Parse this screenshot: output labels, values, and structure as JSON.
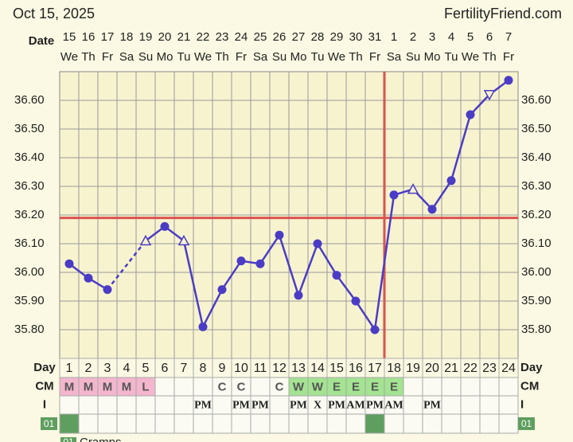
{
  "header": {
    "date": "Oct 15, 2025",
    "site": "FertilityFriend.com"
  },
  "chart_data": {
    "type": "line",
    "date_label": "Date",
    "categories": [
      "15",
      "16",
      "17",
      "18",
      "19",
      "20",
      "21",
      "22",
      "23",
      "24",
      "25",
      "26",
      "27",
      "28",
      "29",
      "30",
      "31",
      "1",
      "2",
      "3",
      "4",
      "5",
      "6",
      "7"
    ],
    "weekdays": [
      "We",
      "Th",
      "Fr",
      "Sa",
      "Su",
      "Mo",
      "Tu",
      "We",
      "Th",
      "Fr",
      "Sa",
      "Su",
      "Mo",
      "Tu",
      "We",
      "Th",
      "Fr",
      "Sa",
      "Su",
      "Mo",
      "Tu",
      "We",
      "Th",
      "Fr"
    ],
    "values": [
      36.03,
      35.98,
      35.94,
      null,
      36.11,
      36.16,
      36.11,
      35.81,
      35.94,
      36.04,
      36.03,
      36.13,
      35.92,
      36.1,
      35.99,
      35.9,
      35.8,
      36.27,
      36.29,
      36.22,
      36.32,
      36.55,
      36.62,
      36.67
    ],
    "markers": [
      "circle",
      "circle",
      "circle",
      null,
      "triangle-up",
      "circle",
      "triangle-up",
      "circle",
      "circle",
      "circle",
      "circle",
      "circle",
      "circle",
      "circle",
      "circle",
      "circle",
      "circle",
      "circle",
      "triangle-up",
      "circle",
      "circle",
      "circle",
      "triangle-down",
      "circle"
    ],
    "color": "#4b3cc6",
    "coverline": 36.19,
    "ovulation_index": 16,
    "reference_color": "#d9534f",
    "ylim": [
      35.7,
      36.7
    ],
    "yticks": [
      {
        "value": 35.8,
        "label": "35.80"
      },
      {
        "value": 35.9,
        "label": "35.90"
      },
      {
        "value": 36.0,
        "label": "36.00"
      },
      {
        "value": 36.1,
        "label": "36.10"
      },
      {
        "value": 36.2,
        "label": "36.20"
      },
      {
        "value": 36.3,
        "label": "36.30"
      },
      {
        "value": 36.4,
        "label": "36.40"
      },
      {
        "value": 36.5,
        "label": "36.50"
      },
      {
        "value": 36.6,
        "label": "36.60"
      }
    ],
    "grid": true
  },
  "rows": [
    {
      "label": "Day",
      "cells": [
        "1",
        "2",
        "3",
        "4",
        "5",
        "6",
        "7",
        "8",
        "9",
        "10",
        "11",
        "12",
        "13",
        "14",
        "15",
        "16",
        "17",
        "18",
        "19",
        "20",
        "21",
        "22",
        "23",
        "24"
      ],
      "colors": [
        null,
        null,
        null,
        null,
        null,
        null,
        null,
        null,
        null,
        null,
        null,
        null,
        null,
        null,
        null,
        null,
        null,
        null,
        null,
        null,
        null,
        null,
        null,
        null
      ]
    },
    {
      "label": "CM",
      "cells": [
        "M",
        "M",
        "M",
        "M",
        "L",
        null,
        null,
        null,
        "C",
        "C",
        null,
        "C",
        "W",
        "W",
        "E",
        "E",
        "E",
        "E",
        null,
        null,
        null,
        null,
        null,
        null
      ],
      "colors": [
        "#f3b6cd",
        "#f3b6cd",
        "#f3b6cd",
        "#f3b6cd",
        "#f3b6cd",
        null,
        null,
        null,
        null,
        null,
        null,
        null,
        "#a3e391",
        "#a3e391",
        "#a3e391",
        "#a3e391",
        "#a3e391",
        "#a3e391",
        null,
        null,
        null,
        null,
        null,
        null
      ]
    },
    {
      "label": "I",
      "cells": [
        null,
        null,
        null,
        null,
        null,
        null,
        null,
        "PM",
        null,
        "PM",
        "PM",
        null,
        "PM",
        "X",
        "PM",
        "AM",
        "PM",
        "AM",
        null,
        "PM",
        null,
        null,
        null,
        null
      ],
      "colors": [
        null,
        null,
        null,
        null,
        null,
        null,
        null,
        null,
        null,
        null,
        null,
        null,
        null,
        null,
        null,
        null,
        null,
        null,
        null,
        null,
        null,
        null,
        null,
        null
      ]
    },
    {
      "label": "01",
      "cells": [
        null,
        null,
        null,
        null,
        null,
        null,
        null,
        null,
        null,
        null,
        null,
        null,
        null,
        null,
        null,
        null,
        null,
        null,
        null,
        null,
        null,
        null,
        null,
        null
      ],
      "colors": [
        "#5e9e5e",
        null,
        null,
        null,
        null,
        null,
        null,
        null,
        null,
        null,
        null,
        null,
        null,
        null,
        null,
        null,
        "#5e9e5e",
        null,
        null,
        null,
        null,
        null,
        null,
        null
      ]
    }
  ],
  "legend": {
    "code": "01",
    "text": "Cramps"
  }
}
